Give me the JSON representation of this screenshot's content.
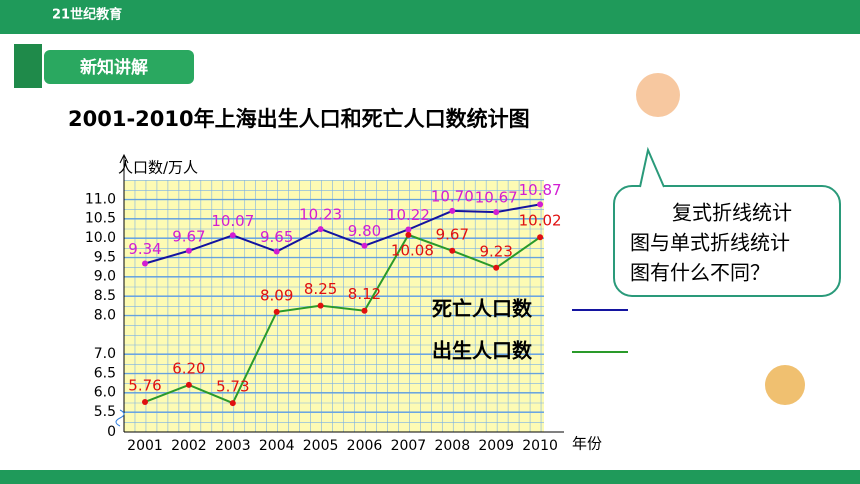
{
  "header": {
    "logo": "21世纪教育",
    "section": "新知讲解"
  },
  "bubble": {
    "lines": [
      "复式折线统计",
      "图与单式折线统计",
      "图有什么不同？"
    ]
  },
  "chart_data": {
    "type": "line",
    "title": "2001-2010年上海出生人口和死亡人口数统计图",
    "y_label": "人口数/万人",
    "x_label": "年份",
    "categories": [
      "2001",
      "2002",
      "2003",
      "2004",
      "2005",
      "2006",
      "2007",
      "2008",
      "2009",
      "2010"
    ],
    "series": [
      {
        "name": "死亡人口数",
        "color": "#1414a0",
        "marker_color": "#d21ed2",
        "values": [
          9.34,
          9.67,
          10.07,
          9.65,
          10.23,
          9.8,
          10.22,
          10.7,
          10.67,
          10.87
        ],
        "value_labels": [
          "9.34",
          "9.67",
          "10.07",
          "9.65",
          "10.23",
          "9.80",
          "10.22",
          "10.70",
          "10.67",
          "10.87"
        ]
      },
      {
        "name": "出生人口数",
        "color": "#2a9a2a",
        "marker_color": "#e01010",
        "values": [
          5.76,
          6.2,
          5.73,
          8.09,
          8.25,
          8.12,
          10.08,
          9.67,
          9.23,
          10.02
        ],
        "value_labels": [
          "5.76",
          "6.20",
          "5.73",
          "8.09",
          "8.25",
          "8.12",
          "10.08",
          "9.67",
          "9.23",
          "10.02"
        ]
      }
    ],
    "ylim": [
      0,
      11
    ],
    "y_break": [
      0,
      5
    ],
    "yticks": [
      0,
      5.5,
      {
        "value": 6,
        "label": "6.0"
      },
      6.5,
      {
        "value": 7,
        "label": "7.0"
      },
      {
        "value": 8,
        "label": "8.0"
      },
      8.5,
      {
        "value": 9,
        "label": "9.0"
      },
      9.5,
      {
        "value": 10,
        "label": "10.0"
      },
      10.5,
      {
        "value": 11,
        "label": "11.0"
      }
    ],
    "grid": true
  }
}
